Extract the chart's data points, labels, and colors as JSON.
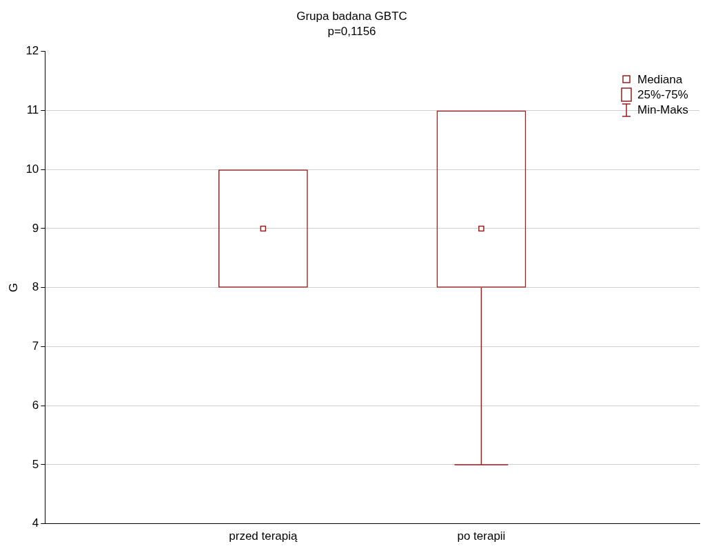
{
  "chart_data": {
    "type": "box",
    "title": "Grupa badana GBTC",
    "subtitle": "p=0,1156",
    "ylabel": "G",
    "categories": [
      "przed terapią",
      "po terapii"
    ],
    "color": "#9b1c1c",
    "boxes": [
      {
        "low": 8,
        "q1": 8,
        "median": 9,
        "q3": 10,
        "high": 10
      },
      {
        "low": 5,
        "q1": 8,
        "median": 9,
        "q3": 11,
        "high": 11
      }
    ],
    "ylim": [
      4,
      12
    ],
    "yticks": [
      4,
      5,
      6,
      7,
      8,
      9,
      10,
      11,
      12
    ],
    "grid": "y",
    "marker": "square",
    "annotations": [
      "Mediana",
      "25%-75%",
      "Min-Maks"
    ]
  }
}
